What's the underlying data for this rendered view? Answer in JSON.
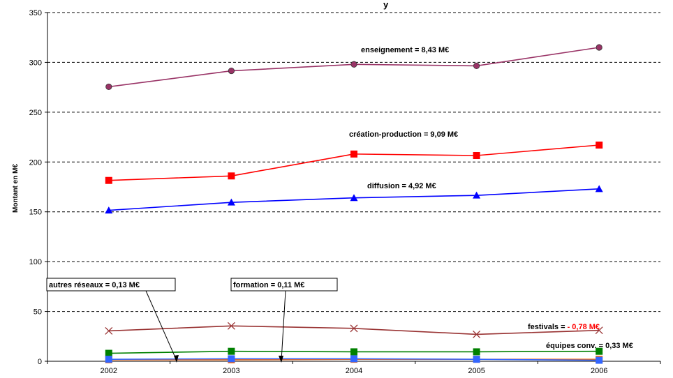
{
  "chart_data": {
    "type": "line",
    "title_fragment": "y",
    "xlabel": "",
    "ylabel": "Montant en M€",
    "ylim": [
      0,
      350
    ],
    "yticks": [
      0,
      50,
      100,
      150,
      200,
      250,
      300,
      350
    ],
    "x": [
      "2002",
      "2003",
      "2004",
      "2005",
      "2006"
    ],
    "grid": "horizontal-dashed",
    "series": [
      {
        "key": "enseignement",
        "color": "#993366",
        "marker": "circle",
        "values": [
          275.5,
          291.5,
          298,
          296.5,
          315
        ]
      },
      {
        "key": "creation",
        "color": "#ff0000",
        "marker": "square",
        "values": [
          181.5,
          186,
          208,
          206.5,
          217
        ]
      },
      {
        "key": "diffusion",
        "color": "#0000ff",
        "marker": "triangle",
        "values": [
          151.5,
          159.5,
          164,
          166.5,
          173
        ]
      },
      {
        "key": "festivals",
        "color": "#993333",
        "marker": "x",
        "values": [
          30.5,
          35.5,
          33,
          27,
          31
        ]
      },
      {
        "key": "equipes",
        "color": "#008000",
        "marker": "square",
        "values": [
          8,
          10,
          9.5,
          9.5,
          10
        ]
      },
      {
        "key": "formation",
        "color": "#ff6600",
        "marker": "square",
        "values": [
          1.5,
          1.5,
          2,
          2,
          2
        ]
      },
      {
        "key": "autres",
        "color": "#3366ff",
        "marker": "square",
        "values": [
          2,
          2.5,
          2.5,
          2,
          1
        ]
      }
    ],
    "annotations": {
      "enseignement": "enseignement = 8,43 M€",
      "creation": "création-production = 9,09 M€",
      "diffusion": "diffusion = 4,92 M€",
      "festivals_prefix": "festivals = ",
      "festivals_value": "- 0,78 M€",
      "equipes": "équipes conv. = 0,33 M€",
      "autres": "autres réseaux = 0,13 M€",
      "formation": "formation = 0,11 M€"
    },
    "annotation_colors": {
      "festivals_value": "#ff0000"
    }
  }
}
